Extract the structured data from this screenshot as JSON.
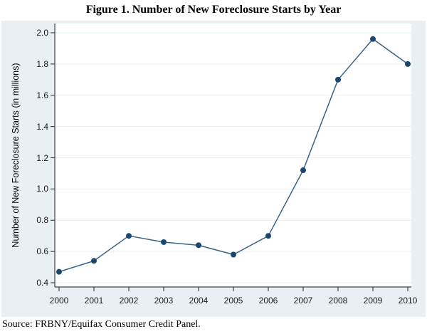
{
  "source_note": "Source: FRBNY/Equifax Consumer Credit Panel.",
  "chart_data": {
    "type": "line",
    "title": "Figure 1. Number of New Foreclosure Starts by Year",
    "x": [
      2000,
      2001,
      2002,
      2003,
      2004,
      2005,
      2006,
      2007,
      2008,
      2009,
      2010
    ],
    "values": [
      0.47,
      0.54,
      0.7,
      0.66,
      0.64,
      0.58,
      0.7,
      1.12,
      1.7,
      1.96,
      1.8
    ],
    "xlabel": "",
    "ylabel": "Number of New Foreclosure Starts (in millions)",
    "ylim": [
      0.4,
      2.0
    ],
    "yticks": [
      0.4,
      0.6,
      0.8,
      1.0,
      1.2,
      1.4,
      1.6,
      1.8,
      2.0
    ],
    "grid": true,
    "legend": "none",
    "colors": {
      "line": "#36648b",
      "marker": "#1a476f",
      "outer_background": "#e9f0f4",
      "plot_background": "#ffffff",
      "grid_line": "#e7eef2",
      "axis_line": "#404040",
      "tick_text": "#1a1a1a"
    }
  }
}
